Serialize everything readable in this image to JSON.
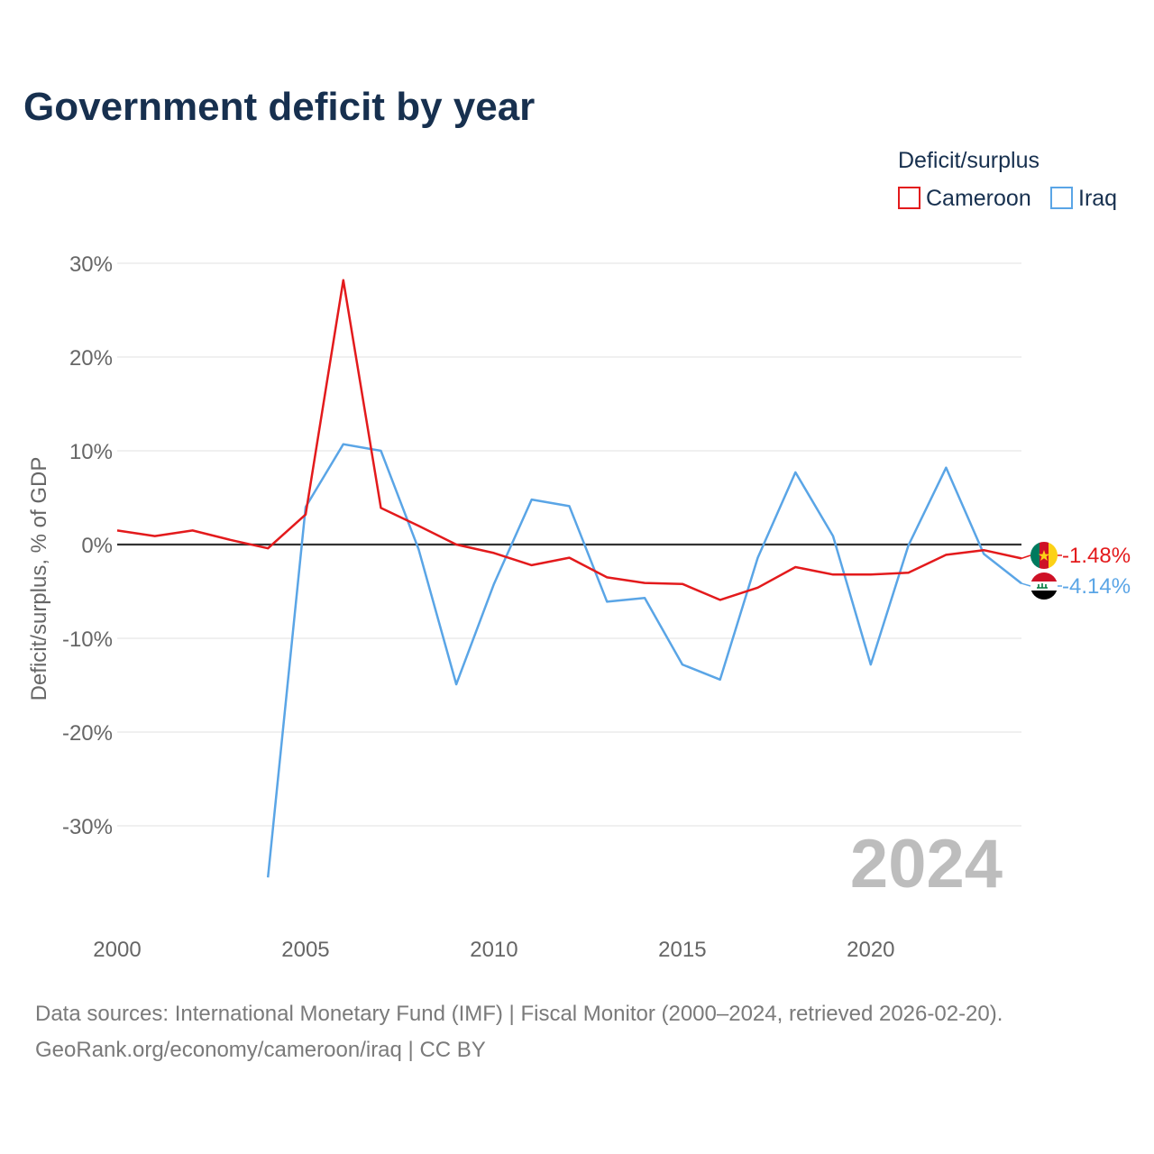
{
  "chart_data": {
    "type": "line",
    "title": "Government deficit by year",
    "ylabel": "Deficit/surplus, % of GDP",
    "xlabel": "",
    "xlim": [
      2000,
      2024
    ],
    "ylim": [
      -40,
      30
    ],
    "yticks": [
      30,
      20,
      10,
      0,
      -10,
      -20,
      -30
    ],
    "ytick_labels": [
      "30%",
      "20%",
      "10%",
      "0%",
      "-10%",
      "-20%",
      "-30%"
    ],
    "xticks": [
      2000,
      2005,
      2010,
      2015,
      2020
    ],
    "xtick_labels": [
      "2000",
      "2005",
      "2010",
      "2015",
      "2020"
    ],
    "grid": true,
    "zero_line": true,
    "legend": {
      "title": "Deficit/surplus",
      "position": "top-right"
    },
    "year_watermark": "2024",
    "series": [
      {
        "name": "Cameroon",
        "color": "#e31a1c",
        "end_label": "-1.48%",
        "flag_icon": "cameroon-flag-icon",
        "x": [
          2000,
          2001,
          2002,
          2003,
          2004,
          2005,
          2006,
          2007,
          2008,
          2009,
          2010,
          2011,
          2012,
          2013,
          2014,
          2015,
          2016,
          2017,
          2018,
          2019,
          2020,
          2021,
          2022,
          2023,
          2024
        ],
        "values": [
          1.5,
          0.9,
          1.5,
          0.5,
          -0.4,
          3.2,
          28.2,
          3.9,
          2.0,
          0.0,
          -0.9,
          -2.2,
          -1.4,
          -3.5,
          -4.1,
          -4.2,
          -5.9,
          -4.6,
          -2.4,
          -3.2,
          -3.2,
          -3.0,
          -1.1,
          -0.6,
          -1.48
        ]
      },
      {
        "name": "Iraq",
        "color": "#5aa5e6",
        "end_label": "-4.14%",
        "flag_icon": "iraq-flag-icon",
        "x": [
          2004,
          2005,
          2006,
          2007,
          2008,
          2009,
          2010,
          2011,
          2012,
          2013,
          2014,
          2015,
          2016,
          2017,
          2018,
          2019,
          2020,
          2021,
          2022,
          2023,
          2024
        ],
        "values": [
          -35.5,
          4.0,
          10.7,
          10.0,
          -0.5,
          -14.9,
          -4.2,
          4.8,
          4.1,
          -6.1,
          -5.7,
          -12.8,
          -14.4,
          -1.4,
          7.7,
          0.9,
          -12.8,
          -0.1,
          8.2,
          -1.0,
          -4.14
        ]
      }
    ]
  },
  "source": {
    "line1": "Data sources: International Monetary Fund (IMF) | Fiscal Monitor (2000–2024, retrieved 2026-02-20).",
    "line2": "GeoRank.org/economy/cameroon/iraq | CC BY"
  }
}
